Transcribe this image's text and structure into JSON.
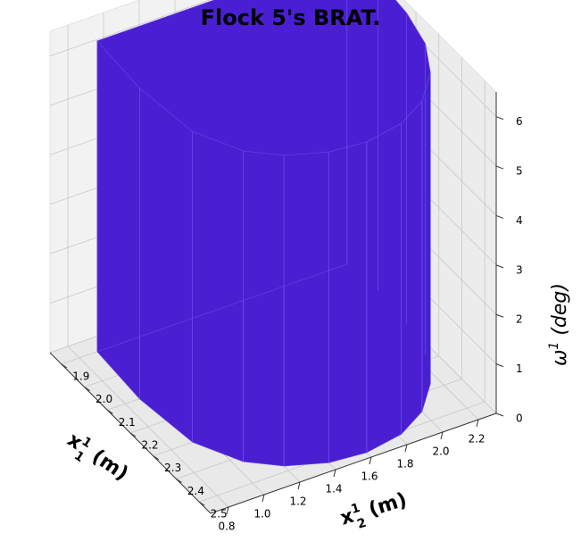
{
  "chart_data": {
    "type": "surface3d",
    "title": "Flock 5's BRAT.",
    "xlabel": {
      "main": "x",
      "sub": "1",
      "sup": "1",
      "unit": "(m)"
    },
    "ylabel": {
      "main": "x",
      "sub": "2",
      "sup": "1",
      "unit": "(m)"
    },
    "zlabel": {
      "main": "ω",
      "sup": "1",
      "unit": "(deg)"
    },
    "x_ticks": [
      1.9,
      2.0,
      2.1,
      2.2,
      2.3,
      2.4,
      2.5
    ],
    "x_tick_labels": [
      "1.9",
      "2.0",
      "2.1",
      "2.2",
      "2.3",
      "2.4",
      "2.5"
    ],
    "y_ticks": [
      0.8,
      1.0,
      1.2,
      1.4,
      1.6,
      1.8,
      2.0,
      2.2
    ],
    "y_tick_labels": [
      "0.8",
      "1.0",
      "1.2",
      "1.4",
      "1.6",
      "1.8",
      "2.0",
      "2.2"
    ],
    "z_ticks": [
      0,
      1,
      2,
      3,
      4,
      5,
      6
    ],
    "z_tick_labels": [
      "0",
      "1",
      "2",
      "3",
      "4",
      "5",
      "6"
    ],
    "xlim": [
      1.85,
      2.55
    ],
    "ylim": [
      0.7,
      2.3
    ],
    "zlim": [
      0,
      6.28
    ],
    "grid": true,
    "surface_color": "#4a1fd2",
    "edge_color": "#6a46e6",
    "pane_color": "#f2f2f2",
    "grid_color": "#c8c8c8",
    "section": {
      "z_min": 0,
      "z_max": 6.2832,
      "outline_x1_x2": [
        [
          1.9,
          2.3
        ],
        [
          2.02,
          2.32
        ],
        [
          2.16,
          2.3
        ],
        [
          2.28,
          2.25
        ],
        [
          2.38,
          2.15
        ],
        [
          2.46,
          2.0
        ],
        [
          2.51,
          1.82
        ],
        [
          2.53,
          1.6
        ],
        [
          2.52,
          1.4
        ],
        [
          2.48,
          1.2
        ],
        [
          2.42,
          1.05
        ],
        [
          2.3,
          0.92
        ],
        [
          2.1,
          0.88
        ],
        [
          1.9,
          0.9
        ]
      ]
    }
  }
}
